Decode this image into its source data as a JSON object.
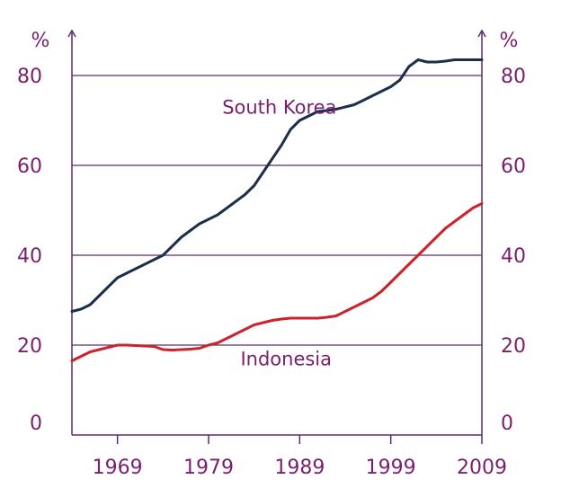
{
  "chart_data": {
    "type": "line",
    "unit_left": "%",
    "unit_right": "%",
    "xlim": [
      1964,
      2009
    ],
    "ylim": [
      0,
      90
    ],
    "x_ticks": [
      1969,
      1979,
      1989,
      1999,
      2009
    ],
    "x_tick_labels": [
      "1969",
      "1979",
      "1989",
      "1999",
      "2009"
    ],
    "y_ticks": [
      0,
      20,
      40,
      60,
      80
    ],
    "y_tick_labels": [
      "0",
      "20",
      "40",
      "60",
      "80"
    ],
    "grid": "horizontal",
    "colors": {
      "axis": "#5a2a6e",
      "grid": "#5a2a6e",
      "text": "#7a1f6e",
      "south_korea": "#1c2f4a",
      "indonesia": "#cc2229"
    },
    "series": [
      {
        "name": "South Korea",
        "color": "#1c2f4a",
        "x": [
          1964,
          1965,
          1966,
          1967,
          1968,
          1969,
          1970,
          1971,
          1972,
          1973,
          1974,
          1975,
          1976,
          1977,
          1978,
          1979,
          1980,
          1981,
          1982,
          1983,
          1984,
          1985,
          1986,
          1987,
          1988,
          1989,
          1990,
          1991,
          1992,
          1993,
          1994,
          1995,
          1996,
          1997,
          1998,
          1999,
          2000,
          2001,
          2002,
          2003,
          2004,
          2005,
          2006,
          2007,
          2008,
          2009
        ],
        "y": [
          27.5,
          28.0,
          29.0,
          31.0,
          33.0,
          35.0,
          36.0,
          37.0,
          38.0,
          39.0,
          40.0,
          42.0,
          44.0,
          45.5,
          47.0,
          48.0,
          49.0,
          50.5,
          52.0,
          53.5,
          55.5,
          58.5,
          61.5,
          64.5,
          68.0,
          70.0,
          71.0,
          72.0,
          72.2,
          72.5,
          73.0,
          73.5,
          74.5,
          75.5,
          76.5,
          77.5,
          79.0,
          82.0,
          83.5,
          83.0,
          83.0,
          83.2,
          83.5,
          83.5,
          83.5,
          83.5
        ]
      },
      {
        "name": "Indonesia",
        "color": "#cc2229",
        "x": [
          1964,
          1965,
          1966,
          1967,
          1968,
          1969,
          1970,
          1971,
          1972,
          1973,
          1974,
          1975,
          1976,
          1977,
          1978,
          1979,
          1980,
          1981,
          1982,
          1983,
          1984,
          1985,
          1986,
          1987,
          1988,
          1989,
          1990,
          1991,
          1992,
          1993,
          1994,
          1995,
          1996,
          1997,
          1998,
          1999,
          2000,
          2001,
          2002,
          2003,
          2004,
          2005,
          2006,
          2007,
          2008,
          2009
        ],
        "y": [
          16.5,
          17.5,
          18.5,
          19.0,
          19.5,
          20.0,
          20.0,
          19.9,
          19.8,
          19.7,
          19.0,
          18.9,
          19.0,
          19.1,
          19.3,
          20.0,
          20.5,
          21.5,
          22.5,
          23.5,
          24.5,
          25.0,
          25.5,
          25.8,
          26.0,
          26.0,
          26.0,
          26.0,
          26.2,
          26.5,
          27.5,
          28.5,
          29.5,
          30.5,
          32.0,
          34.0,
          36.0,
          38.0,
          40.0,
          42.0,
          44.0,
          46.0,
          47.5,
          49.0,
          50.5,
          51.5
        ]
      }
    ],
    "annotations": [
      {
        "text": "South Korea",
        "x": 1980.5,
        "y": 71.5
      },
      {
        "text": "Indonesia",
        "x": 1982.5,
        "y": 15.5
      }
    ]
  }
}
